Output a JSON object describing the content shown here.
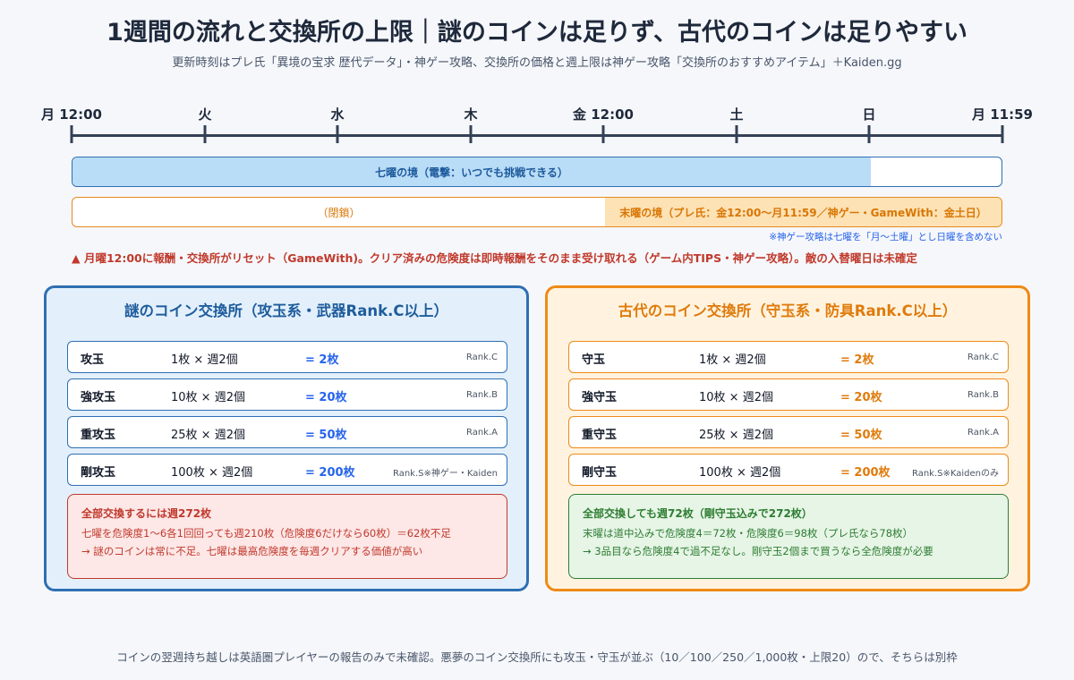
{
  "title": "1週間の流れと交換所の上限｜謎のコインは足りず、古代のコインは足りやすい",
  "subtitle": "更新時刻はプレ氏「異境の宝求 歴代データ」・神ゲー攻略、交換所の価格と週上限は神ゲー攻略「交換所のおすすめアイテム」＋Kaiden.gg",
  "timeline": {
    "labels": [
      "月 12:00",
      "火",
      "水",
      "木",
      "金 12:00",
      "土",
      "日",
      "月 11:59"
    ],
    "shichiyo_label": "七曜の境（電撃：いつでも挑戦できる）",
    "closed_label": "（閉鎖）",
    "matsuyo_label": "末曜の境（プレ氏：金12:00〜月11:59／神ゲー・GameWith：金土日）",
    "note": "※神ゲー攻略は七曜を「月〜土曜」とし日曜を含めない"
  },
  "warning": "▲ 月曜12:00に報酬・交換所がリセット（GameWith)。クリア済みの危険度は即時報酬をそのまま受け取れる（ゲーム内TIPS・神ゲー攻略）。敵の入替曜日は未確定",
  "mystery_panel": {
    "title": "謎のコイン交換所（攻玉系・武器Rank.C以上）",
    "rows": [
      {
        "name": "攻玉",
        "qty": "1枚 × 週2個",
        "total": "= 2枚",
        "rank": "Rank.C"
      },
      {
        "name": "強攻玉",
        "qty": "10枚 × 週2個",
        "total": "= 20枚",
        "rank": "Rank.B"
      },
      {
        "name": "重攻玉",
        "qty": "25枚 × 週2個",
        "total": "= 50枚",
        "rank": "Rank.A"
      },
      {
        "name": "剛攻玉",
        "qty": "100枚 × 週2個",
        "total": "= 200枚",
        "rank": "Rank.S※神ゲー・Kaiden"
      }
    ],
    "summary": {
      "head": "全部交換するには週272枚",
      "line1": "七曜を危険度1〜6各1回回っても週210枚（危険度6だけなら60枚）＝62枚不足",
      "line2": "→ 謎のコインは常に不足。七曜は最高危険度を毎週クリアする価値が高い"
    }
  },
  "ancient_panel": {
    "title": "古代のコイン交換所（守玉系・防具Rank.C以上）",
    "rows": [
      {
        "name": "守玉",
        "qty": "1枚 × 週2個",
        "total": "= 2枚",
        "rank": "Rank.C"
      },
      {
        "name": "強守玉",
        "qty": "10枚 × 週2個",
        "total": "= 20枚",
        "rank": "Rank.B"
      },
      {
        "name": "重守玉",
        "qty": "25枚 × 週2個",
        "total": "= 50枚",
        "rank": "Rank.A"
      },
      {
        "name": "剛守玉",
        "qty": "100枚 × 週2個",
        "total": "= 200枚",
        "rank": "Rank.S※Kaidenのみ"
      }
    ],
    "summary": {
      "head": "全部交換しても週72枚（剛守玉込みで272枚）",
      "line1": "末曜は道中込みで危険度4＝72枚・危険度6＝98枚（プレ氏なら78枚）",
      "line2": "→ 3品目なら危険度4で過不足なし。剛守玉2個まで買うなら全危険度が必要"
    }
  },
  "footer": "コインの翌週持ち越しは英語圏プレイヤーの報告のみで未確認。悪夢のコイン交換所にも攻玉・守玉が並ぶ（10／100／250／1,000枚・上限20）ので、そちらは別枠"
}
